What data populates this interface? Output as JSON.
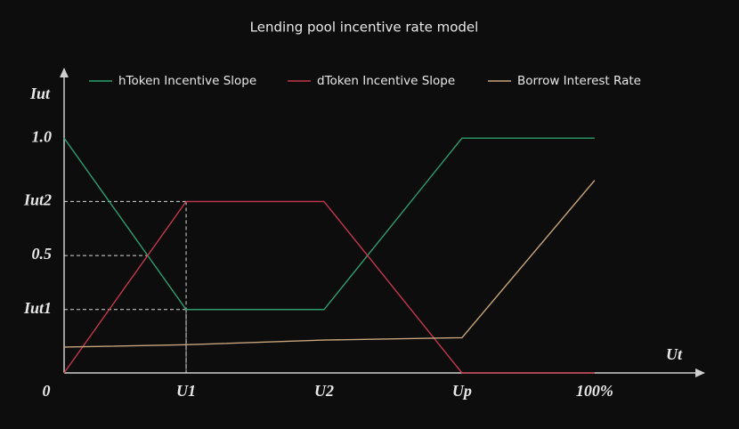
{
  "chart_data": {
    "type": "line",
    "title": "Lending pool incentive rate model",
    "x_label": "Ut",
    "y_label": "Iut",
    "x": [
      0,
      23,
      49,
      75,
      100
    ],
    "series": [
      {
        "name": "hToken Incentive Slope",
        "color": "#2f9d6f",
        "values": [
          1.0,
          0.27,
          0.27,
          1.0,
          1.0
        ]
      },
      {
        "name": "dToken Incentive Slope",
        "color": "#c2374f",
        "values": [
          0,
          0.73,
          0.73,
          0,
          0
        ]
      },
      {
        "name": "Borrow Interest Rate",
        "color": "#c8a57c",
        "values": [
          0.11,
          0.12,
          0.14,
          0.15,
          0.82
        ]
      }
    ],
    "xlim": [
      0,
      120
    ],
    "xticks": [
      0,
      {
        "value": 23,
        "label": "U1"
      },
      {
        "value": 49,
        "label": "U2"
      },
      {
        "value": 75,
        "label": "Up"
      },
      {
        "value": 100,
        "label": "100%"
      }
    ],
    "ylim": [
      0,
      1.3
    ],
    "yticks": [
      {
        "value": 0.27,
        "label": "Iut1"
      },
      0.5,
      {
        "value": 0.73,
        "label": "Iut2"
      },
      {
        "value": 1,
        "label": "1.0"
      }
    ],
    "legend": "top"
  }
}
